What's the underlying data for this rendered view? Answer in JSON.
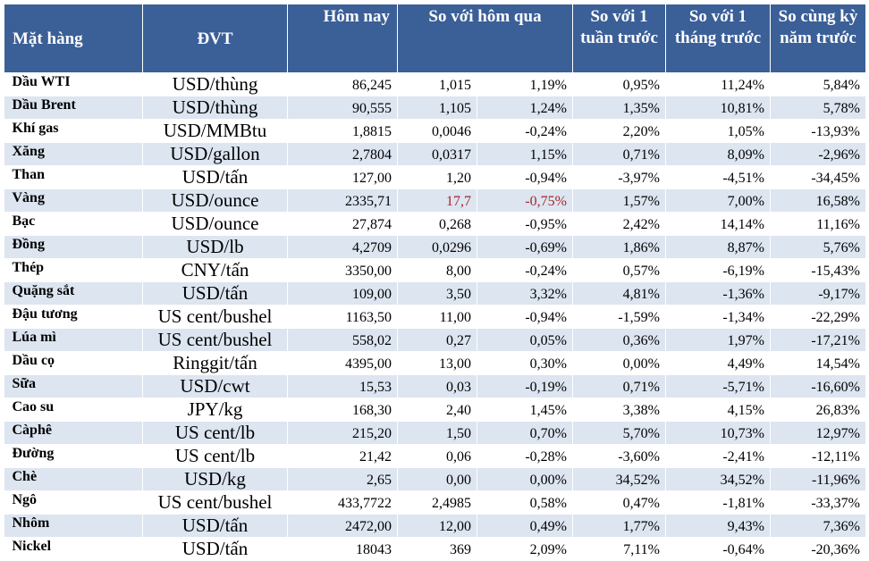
{
  "headers": {
    "name": "Mặt hàng",
    "unit": "ĐVT",
    "today": "Hôm nay",
    "vs_yesterday": "So với hôm qua",
    "vs_week": "So với 1 tuần trước",
    "vs_month": "So với 1 tháng trước",
    "vs_year": "So cùng kỳ năm trước"
  },
  "colors": {
    "header_bg": "#3b5f97",
    "stripe_bg": "#dce5f0",
    "negative_highlight": "#a5262e"
  },
  "rows": [
    {
      "name": "Dầu WTI",
      "unit": "USD/thùng",
      "today": "86,245",
      "change": "1,015",
      "change_pct": "1,19%",
      "week": "0,95%",
      "month": "11,24%",
      "year": "5,84%"
    },
    {
      "name": "Dầu Brent",
      "unit": "USD/thùng",
      "today": "90,555",
      "change": "1,105",
      "change_pct": "1,24%",
      "week": "1,35%",
      "month": "10,81%",
      "year": "5,78%"
    },
    {
      "name": "Khí gas",
      "unit": "USD/MMBtu",
      "today": "1,8815",
      "change": "0,0046",
      "change_pct": "-0,24%",
      "week": "2,20%",
      "month": "1,05%",
      "year": "-13,93%"
    },
    {
      "name": "Xăng",
      "unit": "USD/gallon",
      "today": "2,7804",
      "change": "0,0317",
      "change_pct": "1,15%",
      "week": "0,71%",
      "month": "8,09%",
      "year": "-2,96%"
    },
    {
      "name": "Than",
      "unit": "USD/tấn",
      "today": "127,00",
      "change": "1,20",
      "change_pct": "-0,94%",
      "week": "-3,97%",
      "month": "-4,51%",
      "year": "-34,45%"
    },
    {
      "name": "Vàng",
      "unit": "USD/ounce",
      "today": "2335,71",
      "change": "17,7",
      "change_pct": "-0,75%",
      "week": "1,57%",
      "month": "7,00%",
      "year": "16,58%"
    },
    {
      "name": "Bạc",
      "unit": "USD/ounce",
      "today": "27,874",
      "change": "0,268",
      "change_pct": "-0,95%",
      "week": "2,42%",
      "month": "14,14%",
      "year": "11,16%"
    },
    {
      "name": "Đồng",
      "unit": "USD/lb",
      "today": "4,2709",
      "change": "0,0296",
      "change_pct": "-0,69%",
      "week": "1,86%",
      "month": "8,87%",
      "year": "5,76%"
    },
    {
      "name": "Thép",
      "unit": "CNY/tấn",
      "today": "3350,00",
      "change": "8,00",
      "change_pct": "-0,24%",
      "week": "0,57%",
      "month": "-6,19%",
      "year": "-15,43%"
    },
    {
      "name": "Quặng sắt",
      "unit": "USD/tấn",
      "today": "109,00",
      "change": "3,50",
      "change_pct": "3,32%",
      "week": "4,81%",
      "month": "-1,36%",
      "year": "-9,17%"
    },
    {
      "name": "Đậu tương",
      "unit": "US cent/bushel",
      "today": "1163,50",
      "change": "11,00",
      "change_pct": "-0,94%",
      "week": "-1,59%",
      "month": "-1,34%",
      "year": "-22,29%"
    },
    {
      "name": "Lúa mì",
      "unit": "US cent/bushel",
      "today": "558,02",
      "change": "0,27",
      "change_pct": "0,05%",
      "week": "0,36%",
      "month": "1,97%",
      "year": "-17,21%"
    },
    {
      "name": "Dầu cọ",
      "unit": "Ringgit/tấn",
      "today": "4395,00",
      "change": "13,00",
      "change_pct": "0,30%",
      "week": "0,00%",
      "month": "4,49%",
      "year": "14,54%"
    },
    {
      "name": "Sữa",
      "unit": "USD/cwt",
      "today": "15,53",
      "change": "0,03",
      "change_pct": "-0,19%",
      "week": "0,71%",
      "month": "-5,71%",
      "year": "-16,60%"
    },
    {
      "name": "Cao su",
      "unit": "JPY/kg",
      "today": "168,30",
      "change": "2,40",
      "change_pct": "1,45%",
      "week": "3,38%",
      "month": "4,15%",
      "year": "26,83%"
    },
    {
      "name": "Càphê",
      "unit": "US cent/lb",
      "today": "215,20",
      "change": "1,50",
      "change_pct": "0,70%",
      "week": "5,70%",
      "month": "10,73%",
      "year": "12,97%"
    },
    {
      "name": "Đường",
      "unit": "US cent/lb",
      "today": "21,42",
      "change": "0,06",
      "change_pct": "-0,28%",
      "week": "-3,60%",
      "month": "-2,41%",
      "year": "-12,11%"
    },
    {
      "name": "Chè",
      "unit": "USD/kg",
      "today": "2,65",
      "change": "0,00",
      "change_pct": "0,00%",
      "week": "34,52%",
      "month": "34,52%",
      "year": "-11,96%"
    },
    {
      "name": "Ngô",
      "unit": "US cent/bushel",
      "today": "433,7722",
      "change": "2,4985",
      "change_pct": "0,58%",
      "week": "0,47%",
      "month": "-1,81%",
      "year": "-33,37%"
    },
    {
      "name": "Nhôm",
      "unit": "USD/tấn",
      "today": "2472,00",
      "change": "12,00",
      "change_pct": "0,49%",
      "week": "1,77%",
      "month": "9,43%",
      "year": "7,36%"
    },
    {
      "name": "Nickel",
      "unit": "USD/tấn",
      "today": "18043",
      "change": "369",
      "change_pct": "2,09%",
      "week": "7,11%",
      "month": "-0,64%",
      "year": "-20,36%"
    }
  ]
}
